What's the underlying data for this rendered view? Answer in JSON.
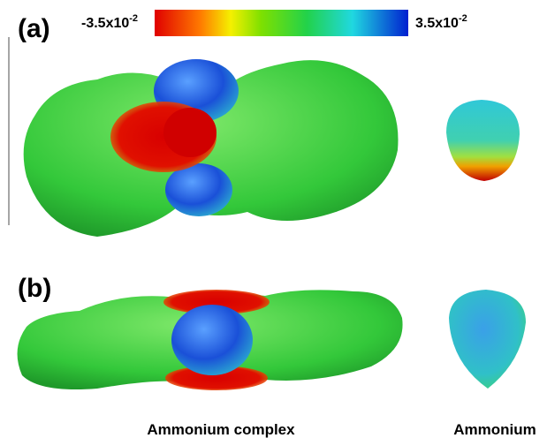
{
  "panels": [
    {
      "label": "(a)"
    },
    {
      "label": "(b)"
    }
  ],
  "colorbar": {
    "min_label": {
      "base": "-3.5x10",
      "exponent": "-2"
    },
    "max_label": {
      "base": "3.5x10",
      "exponent": "-2"
    }
  },
  "captions": [
    "Ammonium complex",
    "Ammonium"
  ]
}
